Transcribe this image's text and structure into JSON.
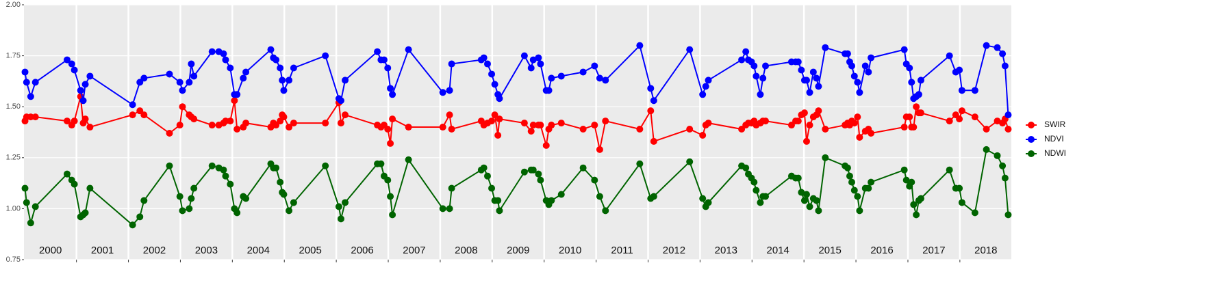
{
  "chart_data": {
    "type": "line",
    "x": [
      2000.01,
      2000.04,
      2000.12,
      2000.21,
      2000.82,
      2000.91,
      2000.96,
      2001.08,
      2001.13,
      2001.17,
      2001.26,
      2002.08,
      2002.22,
      2002.3,
      2002.79,
      2002.99,
      2003.04,
      2003.17,
      2003.21,
      2003.26,
      2003.61,
      2003.74,
      2003.83,
      2003.87,
      2003.96,
      2004.04,
      2004.09,
      2004.21,
      2004.26,
      2004.74,
      2004.79,
      2004.84,
      2004.92,
      2004.96,
      2004.99,
      2005.09,
      2005.18,
      2005.79,
      2006.05,
      2006.09,
      2006.17,
      2006.79,
      2006.86,
      2006.92,
      2006.99,
      2007.04,
      2007.08,
      2007.39,
      2008.05,
      2008.18,
      2008.22,
      2008.79,
      2008.84,
      2008.91,
      2008.99,
      2009.05,
      2009.11,
      2009.14,
      2009.62,
      2009.75,
      2009.79,
      2009.89,
      2009.93,
      2010.04,
      2010.09,
      2010.14,
      2010.33,
      2010.75,
      2010.97,
      2011.07,
      2011.18,
      2011.84,
      2012.05,
      2012.11,
      2012.8,
      2013.05,
      2013.11,
      2013.16,
      2013.8,
      2013.88,
      2013.93,
      2013.99,
      2014.04,
      2014.08,
      2014.16,
      2014.21,
      2014.26,
      2014.76,
      2014.84,
      2014.89,
      2014.95,
      2015.01,
      2015.05,
      2015.11,
      2015.18,
      2015.24,
      2015.28,
      2015.41,
      2015.79,
      2015.84,
      2015.88,
      2015.92,
      2015.97,
      2016.03,
      2016.07,
      2016.18,
      2016.24,
      2016.29,
      2016.93,
      2016.97,
      2017.03,
      2017.07,
      2017.11,
      2017.16,
      2017.21,
      2017.25,
      2017.8,
      2017.92,
      2017.99,
      2018.04,
      2018.29,
      2018.51,
      2018.72,
      2018.82,
      2018.87,
      2018.93
    ],
    "series": [
      {
        "name": "SWIR",
        "color": "#ff0000",
        "values": [
          1.43,
          1.45,
          1.45,
          1.45,
          1.43,
          1.41,
          1.43,
          1.55,
          1.42,
          1.44,
          1.4,
          1.46,
          1.48,
          1.46,
          1.37,
          1.41,
          1.5,
          1.46,
          1.45,
          1.44,
          1.41,
          1.41,
          1.42,
          1.43,
          1.43,
          1.53,
          1.39,
          1.4,
          1.42,
          1.4,
          1.42,
          1.41,
          1.43,
          1.46,
          1.45,
          1.4,
          1.42,
          1.42,
          1.52,
          1.42,
          1.46,
          1.41,
          1.4,
          1.41,
          1.39,
          1.32,
          1.44,
          1.4,
          1.4,
          1.46,
          1.39,
          1.43,
          1.41,
          1.42,
          1.43,
          1.46,
          1.36,
          1.44,
          1.42,
          1.38,
          1.41,
          1.41,
          1.41,
          1.31,
          1.39,
          1.41,
          1.42,
          1.39,
          1.41,
          1.29,
          1.43,
          1.39,
          1.48,
          1.33,
          1.39,
          1.36,
          1.41,
          1.42,
          1.39,
          1.41,
          1.42,
          1.42,
          1.43,
          1.41,
          1.42,
          1.43,
          1.43,
          1.41,
          1.43,
          1.43,
          1.46,
          1.47,
          1.33,
          1.41,
          1.45,
          1.46,
          1.48,
          1.39,
          1.41,
          1.42,
          1.41,
          1.43,
          1.42,
          1.45,
          1.35,
          1.38,
          1.39,
          1.37,
          1.4,
          1.45,
          1.45,
          1.4,
          1.4,
          1.5,
          1.47,
          1.47,
          1.43,
          1.46,
          1.44,
          1.48,
          1.45,
          1.39,
          1.43,
          1.42,
          1.44,
          1.39
        ]
      },
      {
        "name": "NDVI",
        "color": "#0000ff",
        "values": [
          1.67,
          1.62,
          1.55,
          1.62,
          1.73,
          1.71,
          1.68,
          1.58,
          1.53,
          1.61,
          1.65,
          1.51,
          1.62,
          1.64,
          1.66,
          1.62,
          1.58,
          1.62,
          1.71,
          1.65,
          1.77,
          1.77,
          1.76,
          1.73,
          1.69,
          1.56,
          1.56,
          1.64,
          1.67,
          1.78,
          1.74,
          1.73,
          1.69,
          1.63,
          1.58,
          1.63,
          1.69,
          1.75,
          1.54,
          1.53,
          1.63,
          1.77,
          1.73,
          1.73,
          1.69,
          1.59,
          1.56,
          1.78,
          1.57,
          1.58,
          1.71,
          1.73,
          1.74,
          1.71,
          1.66,
          1.61,
          1.56,
          1.54,
          1.75,
          1.69,
          1.73,
          1.74,
          1.71,
          1.58,
          1.58,
          1.64,
          1.65,
          1.67,
          1.7,
          1.64,
          1.63,
          1.8,
          1.59,
          1.53,
          1.78,
          1.56,
          1.6,
          1.63,
          1.73,
          1.77,
          1.73,
          1.72,
          1.7,
          1.65,
          1.56,
          1.64,
          1.7,
          1.72,
          1.72,
          1.72,
          1.68,
          1.63,
          1.63,
          1.57,
          1.67,
          1.64,
          1.6,
          1.79,
          1.76,
          1.76,
          1.72,
          1.7,
          1.65,
          1.62,
          1.57,
          1.7,
          1.67,
          1.74,
          1.78,
          1.71,
          1.69,
          1.62,
          1.54,
          1.55,
          1.56,
          1.63,
          1.75,
          1.67,
          1.68,
          1.58,
          1.58,
          1.8,
          1.79,
          1.76,
          1.7,
          1.46
        ]
      },
      {
        "name": "NDWI",
        "color": "#006400",
        "values": [
          1.1,
          1.03,
          0.93,
          1.01,
          1.17,
          1.14,
          1.12,
          0.96,
          0.97,
          0.98,
          1.1,
          0.92,
          0.96,
          1.04,
          1.21,
          1.06,
          0.99,
          1.0,
          1.05,
          1.1,
          1.21,
          1.2,
          1.19,
          1.16,
          1.12,
          1.0,
          0.98,
          1.06,
          1.05,
          1.22,
          1.2,
          1.2,
          1.13,
          1.08,
          1.07,
          0.99,
          1.03,
          1.21,
          1.01,
          0.95,
          1.03,
          1.22,
          1.22,
          1.16,
          1.14,
          1.06,
          0.97,
          1.24,
          1.0,
          1.0,
          1.1,
          1.19,
          1.2,
          1.16,
          1.1,
          1.04,
          1.04,
          0.99,
          1.18,
          1.19,
          1.19,
          1.17,
          1.14,
          1.04,
          1.02,
          1.04,
          1.07,
          1.2,
          1.14,
          1.06,
          0.99,
          1.22,
          1.05,
          1.06,
          1.23,
          1.05,
          1.01,
          1.03,
          1.21,
          1.2,
          1.17,
          1.15,
          1.13,
          1.09,
          1.03,
          1.06,
          1.06,
          1.16,
          1.15,
          1.15,
          1.08,
          1.04,
          1.07,
          1.01,
          1.05,
          1.04,
          0.99,
          1.25,
          1.21,
          1.2,
          1.16,
          1.13,
          1.09,
          1.06,
          0.99,
          1.1,
          1.1,
          1.13,
          1.19,
          1.14,
          1.11,
          1.13,
          1.02,
          0.97,
          1.04,
          1.05,
          1.19,
          1.1,
          1.1,
          1.03,
          0.98,
          1.29,
          1.26,
          1.21,
          1.15,
          0.97
        ]
      }
    ],
    "xlim": [
      1999.99,
      2018.99
    ],
    "xticks": [
      {
        "value": 2000.5,
        "label": "2000"
      },
      {
        "value": 2001.5,
        "label": "2001"
      },
      {
        "value": 2002.5,
        "label": "2002"
      },
      {
        "value": 2003.5,
        "label": "2003"
      },
      {
        "value": 2004.5,
        "label": "2004"
      },
      {
        "value": 2005.5,
        "label": "2005"
      },
      {
        "value": 2006.5,
        "label": "2006"
      },
      {
        "value": 2007.5,
        "label": "2007"
      },
      {
        "value": 2008.5,
        "label": "2008"
      },
      {
        "value": 2009.5,
        "label": "2009"
      },
      {
        "value": 2010.5,
        "label": "2010"
      },
      {
        "value": 2011.5,
        "label": "2011"
      },
      {
        "value": 2012.5,
        "label": "2012"
      },
      {
        "value": 2013.5,
        "label": "2013"
      },
      {
        "value": 2014.5,
        "label": "2014"
      },
      {
        "value": 2015.5,
        "label": "2015"
      },
      {
        "value": 2016.5,
        "label": "2016"
      },
      {
        "value": 2017.5,
        "label": "2017"
      },
      {
        "value": 2018.5,
        "label": "2018"
      }
    ],
    "year_breaks": [
      2001,
      2002,
      2003,
      2004,
      2005,
      2006,
      2007,
      2008,
      2009,
      2010,
      2011,
      2012,
      2013,
      2014,
      2015,
      2016,
      2017,
      2018
    ],
    "ylim": [
      0.75,
      2.0
    ],
    "yticks": [
      {
        "value": 0.75,
        "label": "0.75"
      },
      {
        "value": 1.0,
        "label": "1.00"
      },
      {
        "value": 1.25,
        "label": "1.25"
      },
      {
        "value": 1.5,
        "label": "1.50"
      },
      {
        "value": 1.75,
        "label": "1.75"
      },
      {
        "value": 2.0,
        "label": "2.00"
      }
    ],
    "grid": true,
    "legend": "right"
  }
}
